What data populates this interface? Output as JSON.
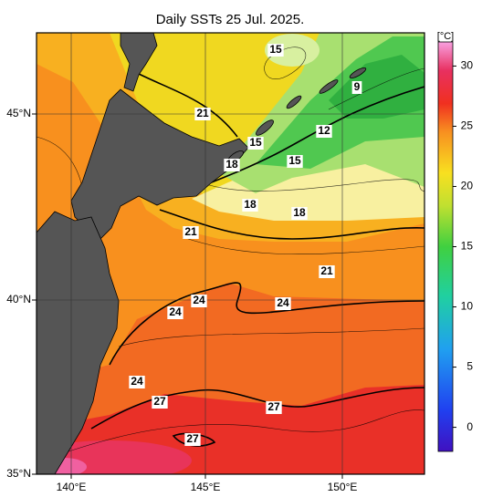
{
  "title": "Daily SSTs 25 Jul. 2025.",
  "lon_labels": [
    "140°E",
    "145°E",
    "150°E"
  ],
  "lat_labels": [
    "45°N",
    "40°N",
    "35°N"
  ],
  "colorbar": {
    "label": "[°C]",
    "range": [
      -2,
      32
    ],
    "ticks": [
      0,
      5,
      10,
      15,
      20,
      25,
      30
    ]
  },
  "contour_labels": [
    15,
    9,
    21,
    15,
    12,
    18,
    15,
    18,
    18,
    21,
    21,
    24,
    24,
    24,
    24,
    27,
    27,
    27
  ]
}
